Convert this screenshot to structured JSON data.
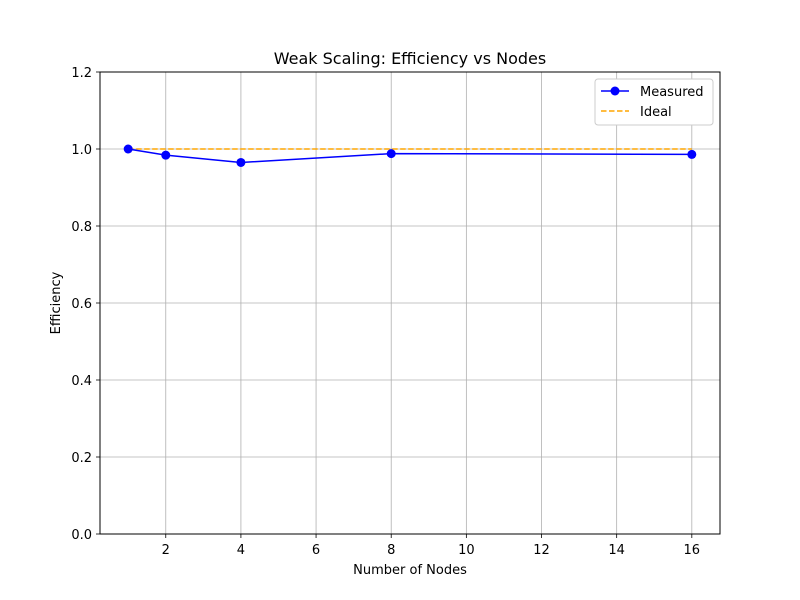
{
  "chart_data": {
    "type": "line",
    "title": "Weak Scaling: Efficiency vs Nodes",
    "xlabel": "Number of Nodes",
    "ylabel": "Efficiency",
    "xlim": [
      0.25,
      16.75
    ],
    "ylim": [
      0.0,
      1.2
    ],
    "xticks": [
      2,
      4,
      6,
      8,
      10,
      12,
      14,
      16
    ],
    "yticks": [
      0.0,
      0.2,
      0.4,
      0.6,
      0.8,
      1.0,
      1.2
    ],
    "grid": true,
    "legend_position": "top-right",
    "series": [
      {
        "name": "Measured",
        "color": "#0000ff",
        "style": "solid",
        "marker": "circle",
        "x": [
          1,
          2,
          4,
          8,
          16
        ],
        "y": [
          1.0,
          0.984,
          0.965,
          0.988,
          0.986
        ]
      },
      {
        "name": "Ideal",
        "color": "#ffa500",
        "style": "dashed",
        "marker": "none",
        "x": [
          1,
          2,
          4,
          8,
          16
        ],
        "y": [
          1.0,
          1.0,
          1.0,
          1.0,
          1.0
        ]
      }
    ]
  }
}
